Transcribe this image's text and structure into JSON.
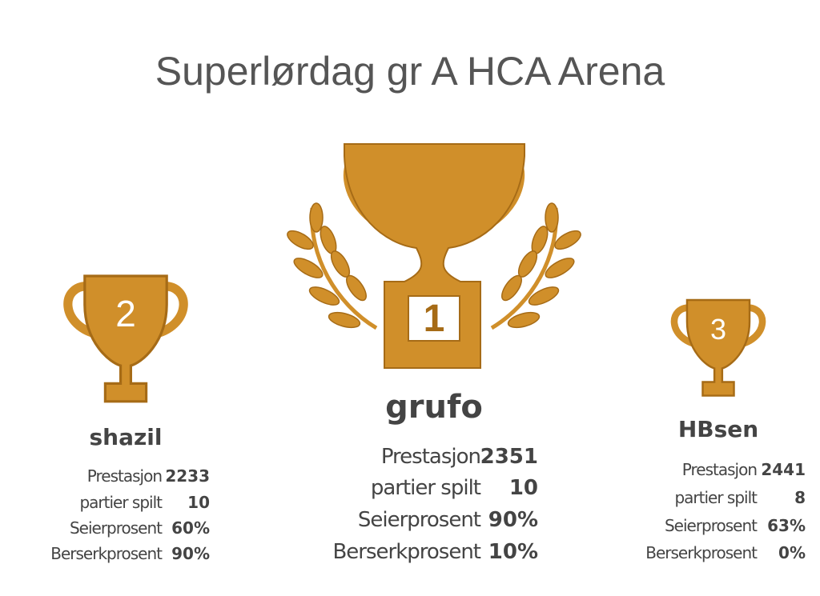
{
  "header": {
    "title": "Superlørdag gr A HCA Arena"
  },
  "podium": [
    {
      "place": "2",
      "name": "shazil",
      "stats": [
        {
          "label": "Prestasjon",
          "value": "2233"
        },
        {
          "label": "partier spilt",
          "value": "10"
        },
        {
          "label": "Seierprosent",
          "value": "60%"
        },
        {
          "label": "Berserkprosent",
          "value": "90%"
        }
      ]
    },
    {
      "place": "1",
      "name": "grufo",
      "stats": [
        {
          "label": "Prestasjon",
          "value": "2351"
        },
        {
          "label": "partier spilt",
          "value": "10"
        },
        {
          "label": "Seierprosent",
          "value": "90%"
        },
        {
          "label": "Berserkprosent",
          "value": "10%"
        }
      ]
    },
    {
      "place": "3",
      "name": "HBsen",
      "stats": [
        {
          "label": "Prestasjon",
          "value": "2441"
        },
        {
          "label": "partier spilt",
          "value": "8"
        },
        {
          "label": "Seierprosent",
          "value": "63%"
        },
        {
          "label": "Berserkprosent",
          "value": "0%"
        }
      ]
    }
  ]
}
